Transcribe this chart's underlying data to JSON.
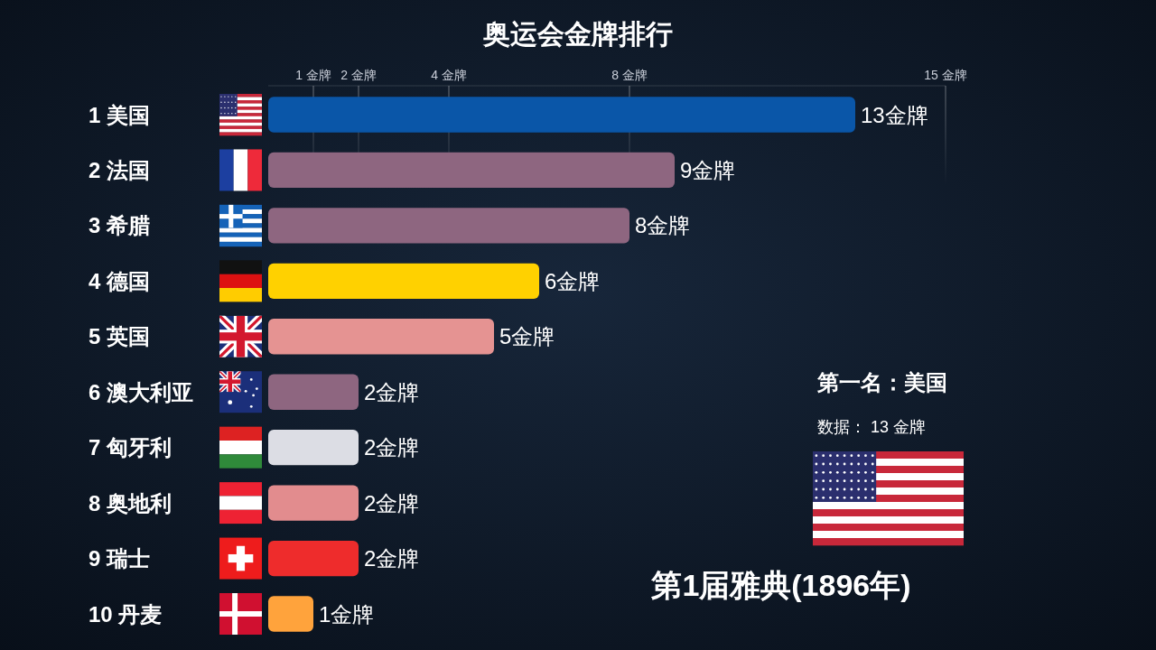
{
  "chart_data": {
    "type": "bar",
    "orientation": "horizontal",
    "title": "奥运会金牌排行",
    "categories": [
      "1 美国",
      "2 法国",
      "3 希腊",
      "4 德国",
      "5 英国",
      "6 澳大利亚",
      "7 匈牙利",
      "8 奥地利",
      "9 瑞士",
      "10 丹麦"
    ],
    "values": [
      13,
      9,
      8,
      6,
      5,
      2,
      2,
      2,
      2,
      1
    ],
    "colors": [
      "#0a56a8",
      "#8e6680",
      "#8e6680",
      "#ffd100",
      "#e59392",
      "#8e6680",
      "#dcdde4",
      "#e28c8e",
      "#ee2c2c",
      "#ffa33c"
    ],
    "value_labels": [
      "13金牌",
      "9金牌",
      "8金牌",
      "6金牌",
      "5金牌",
      "2金牌",
      "2金牌",
      "2金牌",
      "2金牌",
      "1金牌"
    ],
    "xlim": [
      0,
      15
    ],
    "xticks": [
      {
        "value": 1,
        "label": "1 金牌"
      },
      {
        "value": 2,
        "label": "2 金牌"
      },
      {
        "value": 4,
        "label": "4 金牌"
      },
      {
        "value": 8,
        "label": "8 金牌"
      },
      {
        "value": 15,
        "label": "15 金牌"
      }
    ],
    "grid": "x",
    "annotations": [
      "第一名：美国",
      "数据： 13 金牌",
      "第1届雅典(1896年)"
    ]
  }
}
